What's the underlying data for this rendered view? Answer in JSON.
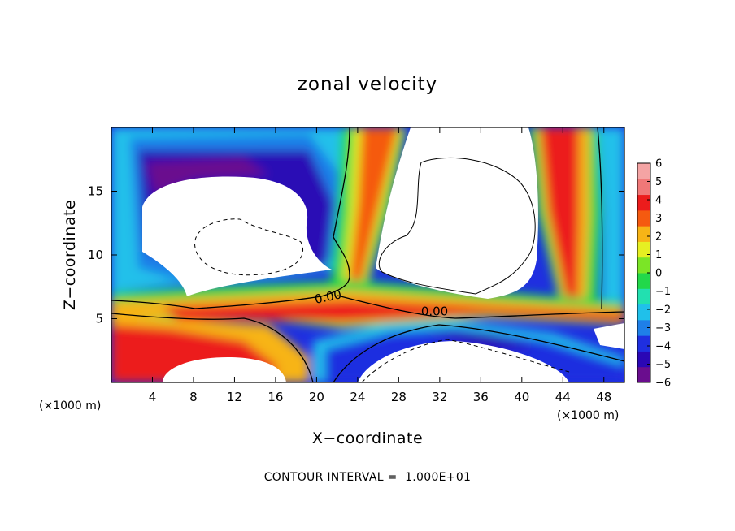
{
  "chart_data": {
    "type": "heatmap",
    "title": "zonal velocity",
    "xlabel": "X−coordinate",
    "ylabel": "Z−coordinate",
    "x_unit_label": "(×1000 m)",
    "x_unit_label_right": "(×1000 m)",
    "xlim": [
      0,
      50
    ],
    "ylim": [
      0,
      20
    ],
    "x_ticks": [
      4,
      8,
      12,
      16,
      20,
      24,
      28,
      32,
      36,
      40,
      44,
      48
    ],
    "y_ticks": [
      5,
      10,
      15
    ],
    "colorbar": {
      "min": -6,
      "max": 6,
      "ticks": [
        6,
        5,
        4,
        3,
        2,
        1,
        0,
        -1,
        -2,
        -3,
        -4,
        -5,
        -6
      ],
      "tick_labels": [
        "6",
        "5",
        "4",
        "3",
        "2",
        "1",
        "0",
        "−1",
        "−2",
        "−3",
        "−4",
        "−5",
        "−6"
      ],
      "colors": [
        "#6a0d8e",
        "#2a07b5",
        "#1f2fe0",
        "#1f7fe8",
        "#20c0ea",
        "#22e0b0",
        "#22d84a",
        "#7be526",
        "#e6ef22",
        "#f7b416",
        "#f55a10",
        "#ec1c1c",
        "#f07878",
        "#f4a4a4"
      ]
    },
    "contour_labels": [
      "0.00",
      "0.00"
    ],
    "contour_interval_note": "CONTOUR INTERVAL =  1.000E+01"
  }
}
